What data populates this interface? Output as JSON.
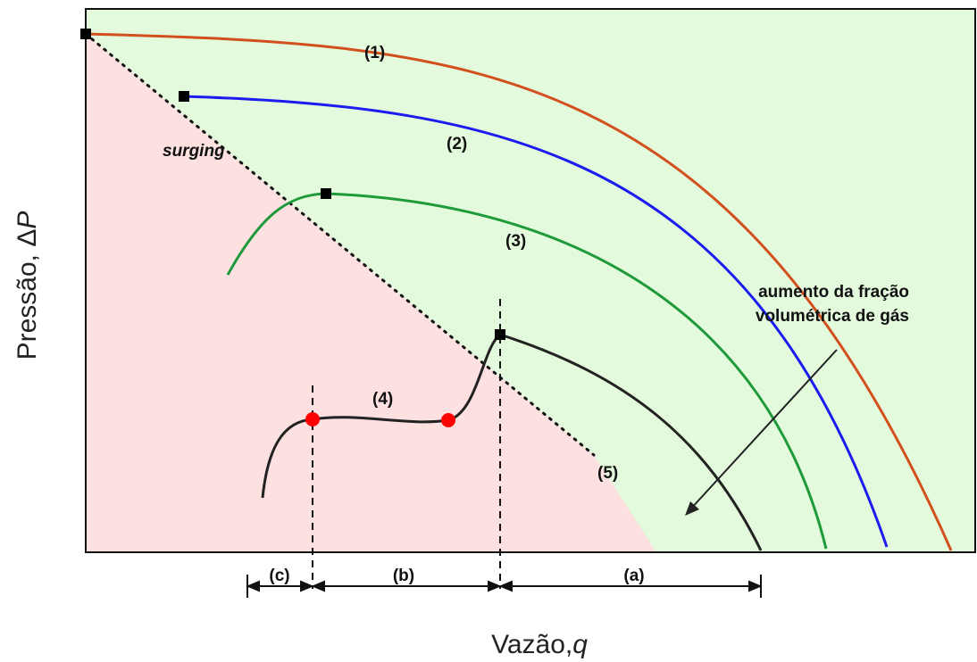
{
  "curves": [
    {
      "label": "(1)",
      "color": "#d2501e"
    },
    {
      "label": "(2)",
      "color": "#1c1cf0"
    },
    {
      "label": "(3)",
      "color": "#1f9a3a"
    },
    {
      "label": "(4)",
      "color": "#222222"
    },
    {
      "label": "(5)"
    }
  ],
  "surge_label": "surging",
  "annotation": {
    "line1": "aumento da fração",
    "line2": "volumétrica de gás"
  },
  "regions": {
    "c": "(c)",
    "b": "(b)",
    "a": "(a)"
  },
  "x_axis": {
    "prefix": "Vazão,",
    "var": "q"
  },
  "y_axis": {
    "prefix": "Pressão, Δ",
    "var": "P"
  },
  "colors": {
    "stable_zone": "#e3fbdc",
    "surge_zone": "#fde0e0",
    "operating_point": "#ff0000"
  }
}
